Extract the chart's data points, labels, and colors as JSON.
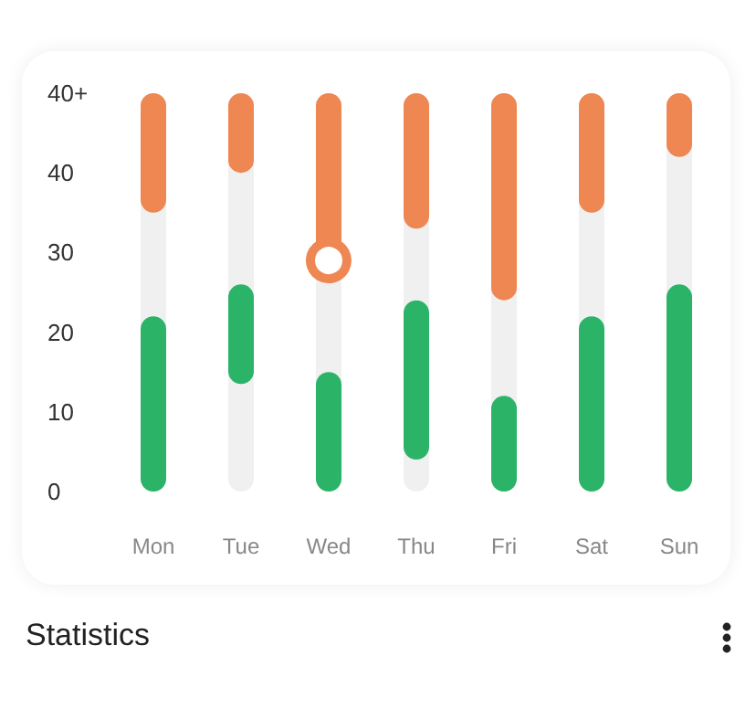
{
  "chart_data": {
    "type": "bar",
    "title": "Statistics",
    "categories": [
      "Mon",
      "Tue",
      "Wed",
      "Thu",
      "Fri",
      "Sat",
      "Sun"
    ],
    "series": [
      {
        "color": "#2bb467",
        "base": [
          0,
          13.5,
          0,
          4,
          0,
          0,
          0
        ],
        "values": [
          22,
          12.5,
          15,
          20,
          12,
          22,
          26
        ]
      },
      {
        "color": "#ee8752",
        "base": [
          35,
          40,
          29,
          33,
          24,
          35,
          42
        ],
        "values": [
          15,
          10,
          21,
          17,
          26,
          15,
          8
        ]
      },
      {
        "type": "scatter",
        "color": "#ee8752",
        "marker": "circle",
        "x": [
          "Wed"
        ],
        "values": [
          29
        ]
      }
    ],
    "ylim": [
      0,
      50
    ],
    "yticks": [
      0,
      10,
      20,
      30,
      40,
      {
        "value": 50,
        "label": "40+"
      }
    ],
    "grid": false
  }
}
